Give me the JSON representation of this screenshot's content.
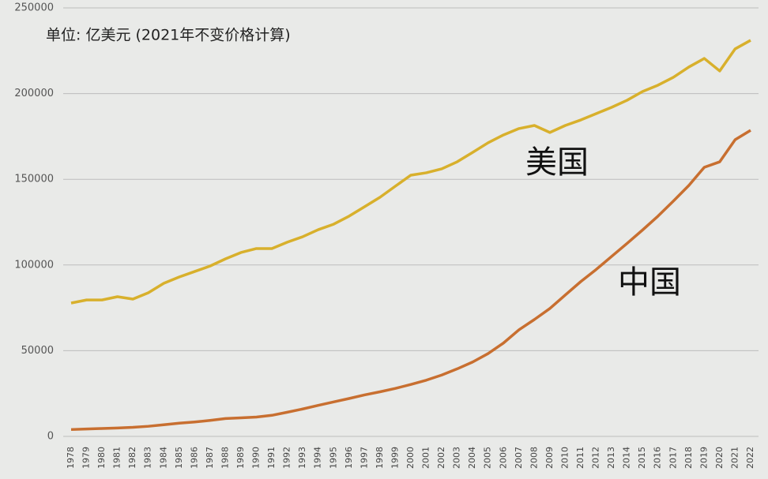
{
  "chart_data": {
    "type": "line",
    "subtitle": "单位: 亿美元 (2021年不变价格计算)",
    "categories": [
      "1978",
      "1979",
      "1980",
      "1981",
      "1982",
      "1983",
      "1984",
      "1985",
      "1986",
      "1987",
      "1988",
      "1989",
      "1990",
      "1991",
      "1992",
      "1993",
      "1994",
      "1995",
      "1996",
      "1997",
      "1998",
      "1999",
      "2000",
      "2001",
      "2002",
      "2003",
      "2004",
      "2005",
      "2006",
      "2007",
      "2008",
      "2009",
      "2010",
      "2011",
      "2012",
      "2013",
      "2014",
      "2015",
      "2016",
      "2017",
      "2018",
      "2019",
      "2020",
      "2021",
      "2022"
    ],
    "series": [
      {
        "name": "美国",
        "color": "#d8b02c",
        "values": [
          77800,
          79600,
          79600,
          81500,
          80100,
          83800,
          89300,
          93000,
          96200,
          99400,
          103600,
          107300,
          109600,
          109600,
          113300,
          116500,
          120600,
          123800,
          128500,
          134000,
          139500,
          146000,
          152400,
          153800,
          156100,
          160200,
          165700,
          171300,
          175900,
          179600,
          181400,
          177300,
          181400,
          184600,
          188300,
          192000,
          196100,
          201200,
          204900,
          209500,
          215500,
          220500,
          213200,
          226100,
          231100
        ]
      },
      {
        "name": "中国",
        "color": "#c86f30",
        "values": [
          4000,
          4300,
          4600,
          4900,
          5300,
          5900,
          6800,
          7700,
          8400,
          9300,
          10400,
          10800,
          11300,
          12300,
          14100,
          16000,
          18100,
          20100,
          22100,
          24200,
          26000,
          28000,
          30300,
          32800,
          35800,
          39400,
          43400,
          48300,
          54500,
          62200,
          68200,
          74600,
          82500,
          90300,
          97400,
          105000,
          112600,
          120400,
          128500,
          137300,
          146400,
          157000,
          160200,
          173100,
          178600
        ]
      }
    ],
    "ylim": [
      0,
      250000
    ],
    "yticks": [
      0,
      50000,
      100000,
      150000,
      200000,
      250000
    ],
    "grid": true
  }
}
